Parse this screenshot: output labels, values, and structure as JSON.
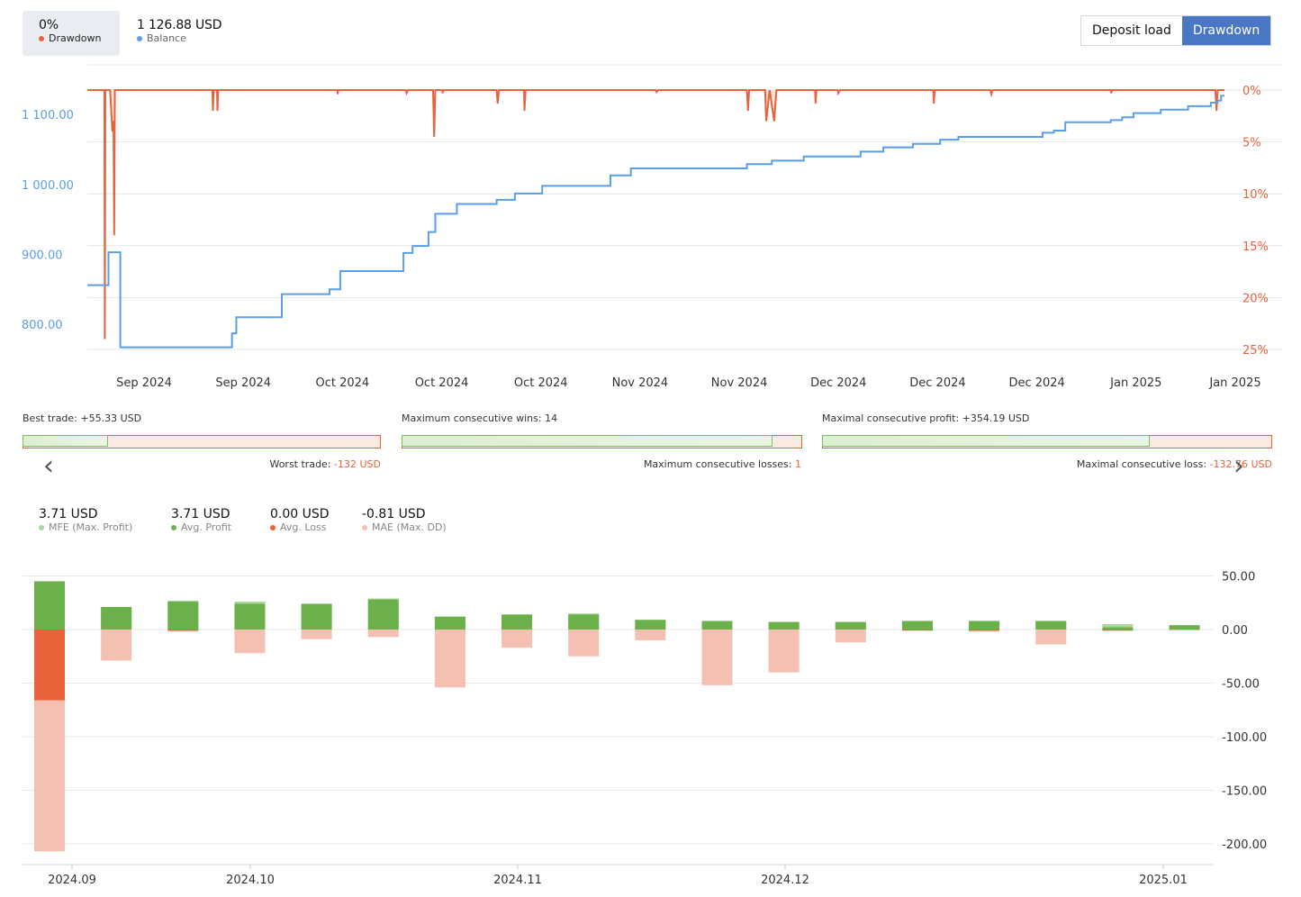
{
  "legend": {
    "drawdown_value": "0%",
    "drawdown_label": "Drawdown",
    "balance_value": "1 126.88 USD",
    "balance_label": "Balance",
    "drawdown_color": "#e8623a",
    "balance_color": "#5b9ee8"
  },
  "toggle": {
    "deposit_load": "Deposit load",
    "drawdown": "Drawdown",
    "active": "drawdown"
  },
  "chart_data": [
    {
      "type": "line",
      "x_tick_labels": [
        "Sep 2024",
        "Sep 2024",
        "Oct 2024",
        "Oct 2024",
        "Oct 2024",
        "Nov 2024",
        "Nov 2024",
        "Dec 2024",
        "Dec 2024",
        "Dec 2024",
        "Jan 2025",
        "Jan 2025"
      ],
      "y_left_ticks": [
        "1 100.00",
        "1 000.00",
        "900.00",
        "800.00"
      ],
      "y_right_ticks": [
        "0%",
        "5%",
        "10%",
        "15%",
        "20%",
        "25%"
      ],
      "y_left_range": [
        764,
        1135
      ],
      "y_right_range": [
        0,
        25
      ],
      "series": [
        {
          "name": "Balance",
          "axis": "left",
          "color": "#5b9ee8",
          "points": [
            [
              0,
              856
            ],
            [
              0.093,
              856
            ],
            [
              0.093,
              903
            ],
            [
              0.145,
              903
            ],
            [
              0.145,
              767
            ],
            [
              0.636,
              767
            ],
            [
              0.636,
              787
            ],
            [
              0.655,
              787
            ],
            [
              0.655,
              810
            ],
            [
              0.855,
              810
            ],
            [
              0.855,
              843
            ],
            [
              1.065,
              843
            ],
            [
              1.065,
              850
            ],
            [
              1.112,
              850
            ],
            [
              1.112,
              876
            ],
            [
              1.39,
              876
            ],
            [
              1.39,
              902
            ],
            [
              1.43,
              902
            ],
            [
              1.43,
              912
            ],
            [
              1.5,
              912
            ],
            [
              1.5,
              932
            ],
            [
              1.53,
              932
            ],
            [
              1.53,
              958
            ],
            [
              1.625,
              958
            ],
            [
              1.625,
              972
            ],
            [
              1.625,
              972
            ],
            [
              1.8,
              972
            ],
            [
              1.8,
              978
            ],
            [
              1.88,
              978
            ],
            [
              1.88,
              987
            ],
            [
              1.98,
              987
            ],
            [
              2.0,
              987
            ],
            [
              2.0,
              998
            ],
            [
              2.3,
              998
            ],
            [
              2.3,
              1013
            ],
            [
              2.39,
              1013
            ],
            [
              2.39,
              1023
            ],
            [
              2.9,
              1023
            ],
            [
              2.9,
              1029
            ],
            [
              3.01,
              1029
            ],
            [
              3.01,
              1034
            ],
            [
              3.15,
              1034
            ],
            [
              3.15,
              1040
            ],
            [
              3.4,
              1040
            ],
            [
              3.4,
              1047
            ],
            [
              3.5,
              1047
            ],
            [
              3.5,
              1053
            ],
            [
              3.63,
              1053
            ],
            [
              3.63,
              1058
            ],
            [
              3.75,
              1058
            ],
            [
              3.75,
              1064
            ],
            [
              3.83,
              1064
            ],
            [
              3.83,
              1068
            ],
            [
              4.2,
              1068
            ],
            [
              4.2,
              1074
            ],
            [
              4.25,
              1074
            ],
            [
              4.25,
              1077
            ],
            [
              4.3,
              1077
            ],
            [
              4.3,
              1089
            ],
            [
              4.5,
              1089
            ],
            [
              4.5,
              1092
            ],
            [
              4.55,
              1092
            ],
            [
              4.55,
              1096
            ],
            [
              4.6,
              1096
            ],
            [
              4.6,
              1102
            ],
            [
              4.6,
              1102
            ],
            [
              4.72,
              1102
            ],
            [
              4.72,
              1107
            ],
            [
              4.84,
              1107
            ],
            [
              4.84,
              1112
            ],
            [
              4.94,
              1112
            ],
            [
              4.94,
              1117
            ],
            [
              4.97,
              1117
            ],
            [
              4.97,
              1120
            ],
            [
              4.985,
              1120
            ],
            [
              4.985,
              1126.88
            ],
            [
              5.0,
              1126.88
            ]
          ]
        },
        {
          "name": "Drawdown",
          "axis": "right",
          "color": "#e8623a",
          "points": [
            [
              0,
              0
            ],
            [
              0.075,
              0
            ],
            [
              0.077,
              24
            ],
            [
              0.079,
              0
            ],
            [
              0.1,
              0
            ],
            [
              0.104,
              1.5
            ],
            [
              0.11,
              4
            ],
            [
              0.115,
              3
            ],
            [
              0.118,
              14
            ],
            [
              0.121,
              0
            ],
            [
              0.55,
              0
            ],
            [
              0.552,
              2
            ],
            [
              0.556,
              0
            ],
            [
              0.57,
              0
            ],
            [
              0.572,
              2
            ],
            [
              0.575,
              0
            ],
            [
              1.1,
              0
            ],
            [
              1.101,
              0.4
            ],
            [
              1.103,
              0
            ],
            [
              1.4,
              0
            ],
            [
              1.404,
              0.3
            ],
            [
              1.41,
              0
            ],
            [
              1.52,
              0
            ],
            [
              1.525,
              4.5
            ],
            [
              1.53,
              0
            ],
            [
              1.56,
              0
            ],
            [
              1.562,
              0.3
            ],
            [
              1.566,
              0
            ],
            [
              1.8,
              0
            ],
            [
              1.804,
              1.3
            ],
            [
              1.81,
              0
            ],
            [
              1.92,
              0
            ],
            [
              1.922,
              2
            ],
            [
              1.927,
              0
            ],
            [
              2.5,
              0
            ],
            [
              2.503,
              0.2
            ],
            [
              2.51,
              0
            ],
            [
              2.9,
              0
            ],
            [
              2.905,
              2
            ],
            [
              2.91,
              0
            ],
            [
              2.98,
              0
            ],
            [
              2.985,
              3
            ],
            [
              3.0,
              0
            ],
            [
              3.02,
              3
            ],
            [
              3.03,
              0
            ],
            [
              3.2,
              0
            ],
            [
              3.202,
              1.3
            ],
            [
              3.206,
              0
            ],
            [
              3.3,
              0
            ],
            [
              3.302,
              0.3
            ],
            [
              3.31,
              0
            ],
            [
              3.72,
              0
            ],
            [
              3.722,
              1.3
            ],
            [
              3.726,
              0
            ],
            [
              3.97,
              0
            ],
            [
              3.975,
              0.4
            ],
            [
              3.98,
              0
            ],
            [
              4.5,
              0
            ],
            [
              4.502,
              0.3
            ],
            [
              4.505,
              0
            ],
            [
              4.96,
              0
            ],
            [
              4.965,
              2
            ],
            [
              4.97,
              0
            ],
            [
              5.0,
              0
            ]
          ]
        }
      ]
    },
    {
      "type": "bar",
      "x_tick_labels": [
        "2024.09",
        "2024.10",
        "2024.11",
        "2024.12",
        "2025.01"
      ],
      "y_ticks": [
        "50.00",
        "0.00",
        "-50.00",
        "-100.00",
        "-150.00",
        "-200.00"
      ],
      "ylim": [
        -210,
        60
      ],
      "series": [
        {
          "name": "MFE (Max. Profit)",
          "color": "#a8d89a",
          "values": [
            45,
            21,
            27,
            26,
            24,
            29,
            12,
            14,
            15,
            9,
            8,
            7,
            7,
            8,
            8,
            8,
            5,
            4
          ]
        },
        {
          "name": "Avg. Profit",
          "color": "#6bb04a",
          "values": [
            45,
            21,
            26,
            24,
            24,
            28,
            12,
            14,
            14,
            9,
            8,
            7,
            7,
            8,
            8,
            8,
            2,
            4
          ]
        },
        {
          "name": "Avg. Loss",
          "color": "#e8623a",
          "values": [
            -66,
            0,
            -1,
            0,
            0,
            0,
            0,
            0,
            0,
            0,
            0,
            0,
            0,
            -1,
            -1,
            0,
            -1,
            0
          ]
        },
        {
          "name": "MAE (Max. DD)",
          "color": "#f4c0b1",
          "values": [
            -207,
            -29,
            -2,
            -22,
            -9,
            -7,
            -54,
            -17,
            -25,
            -10,
            -52,
            -40,
            -12,
            -1,
            -2,
            -14,
            -1,
            -1
          ]
        }
      ]
    }
  ],
  "stats": {
    "best_trade_label": "Best trade:",
    "best_trade_value": "+55.33 USD",
    "worst_trade_label": "Worst trade:",
    "worst_trade_value": "-132 USD",
    "best_trade_ratio": 0.24,
    "max_cons_wins_label": "Maximum consecutive wins:",
    "max_cons_wins_value": "14",
    "max_cons_losses_label": "Maximum consecutive losses:",
    "max_cons_losses_value": "1",
    "cons_wins_ratio": 0.93,
    "max_cons_profit_label": "Maximal consecutive profit:",
    "max_cons_profit_value": "+354.19 USD",
    "max_cons_loss_label": "Maximal consecutive loss:",
    "max_cons_loss_value": "-132.76 USD",
    "cons_profit_ratio": 0.73
  },
  "metrics": {
    "mfe_value": "3.71 USD",
    "mfe_label": "MFE (Max. Profit)",
    "avg_profit_value": "3.71 USD",
    "avg_profit_label": "Avg. Profit",
    "avg_loss_value": "0.00 USD",
    "avg_loss_label": "Avg. Loss",
    "mae_value": "-0.81 USD",
    "mae_label": "MAE (Max. DD)"
  },
  "icons": {
    "prev": "chevron-left-icon",
    "next": "chevron-right-icon"
  }
}
